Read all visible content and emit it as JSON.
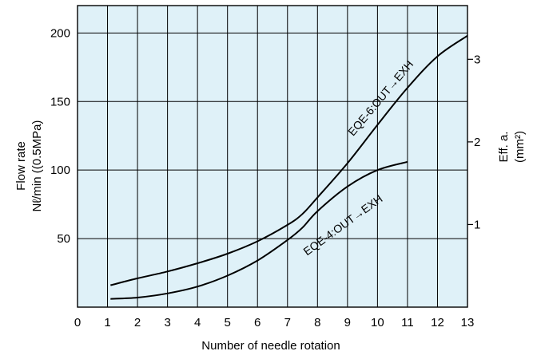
{
  "chart_data": {
    "type": "line",
    "xlabel": "Number of needle rotation",
    "ylabel": [
      "Flow rate",
      "Nℓ/min ((0.5MPa)"
    ],
    "y2label": [
      "Eff. a.",
      "(mm²)"
    ],
    "xlim": [
      0,
      13
    ],
    "ylim": [
      0,
      220
    ],
    "y2lim": [
      0,
      3.65
    ],
    "x_ticks": [
      0,
      1,
      2,
      3,
      4,
      5,
      6,
      7,
      8,
      9,
      10,
      11,
      12,
      13
    ],
    "y_ticks": [
      50,
      100,
      150,
      200
    ],
    "y2_ticks": [
      1,
      2,
      3
    ],
    "grid": true,
    "background_color": "#dff1f8",
    "series": [
      {
        "name": "EQE-6:OUT→EXH",
        "x": [
          1.1,
          2,
          3,
          4,
          5,
          6,
          7,
          7.5,
          8,
          9,
          10,
          11,
          12,
          13
        ],
        "values": [
          16,
          21,
          26,
          32,
          39,
          48,
          60,
          68,
          80,
          105,
          133,
          160,
          183,
          198
        ]
      },
      {
        "name": "EQE-4:OUT→EXH",
        "x": [
          1.1,
          2,
          3,
          4,
          5,
          6,
          7,
          7.5,
          8,
          9,
          10,
          11
        ],
        "values": [
          6,
          7,
          10,
          15,
          23,
          34,
          49,
          58,
          70,
          88,
          100,
          106
        ]
      }
    ]
  }
}
